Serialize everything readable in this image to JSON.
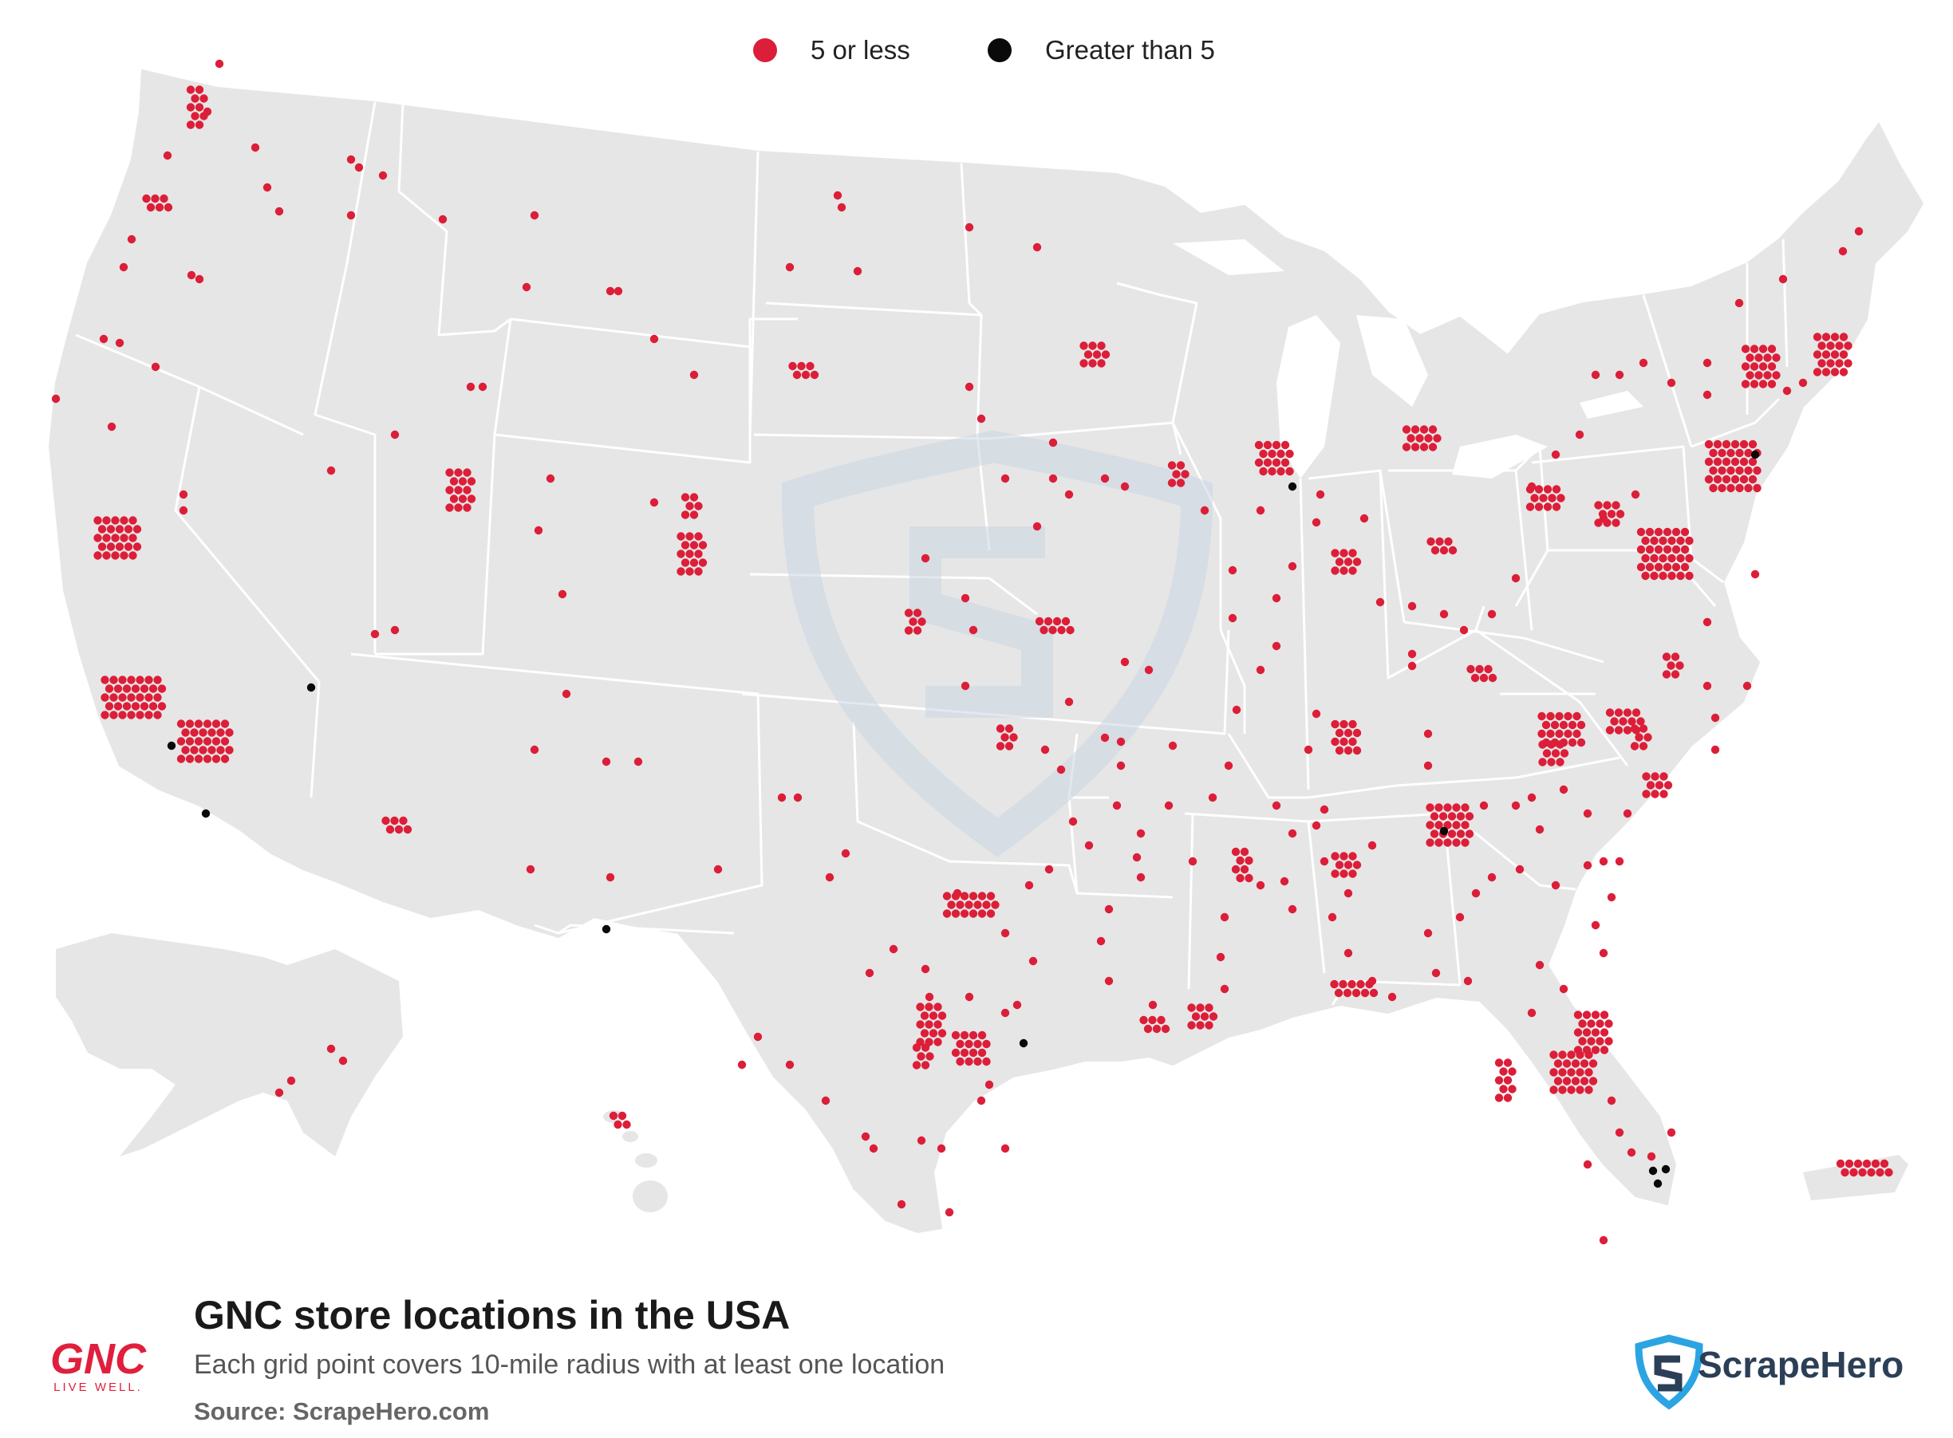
{
  "legend": {
    "items": [
      {
        "label": "5 or less",
        "color": "#dc1e38"
      },
      {
        "label": "Greater than 5",
        "color": "#0a0a0a"
      }
    ]
  },
  "footer": {
    "title": "GNC store locations in the USA",
    "subtitle": "Each grid point covers 10-mile radius with at least one location",
    "source": "Source: ScrapeHero.com"
  },
  "brand": {
    "gnc_logo_text": "GNC",
    "gnc_tagline": "LIVE WELL.",
    "gnc_color": "#e01f3d",
    "scrapehero_text": "ScrapeHero",
    "scrapehero_color": "#2b3f57",
    "scrapehero_accent": "#2ba4e3"
  },
  "map": {
    "land_color": "#e6e6e6",
    "border_color": "#ffffff",
    "watermark": "scrapehero-shield-icon"
  }
}
